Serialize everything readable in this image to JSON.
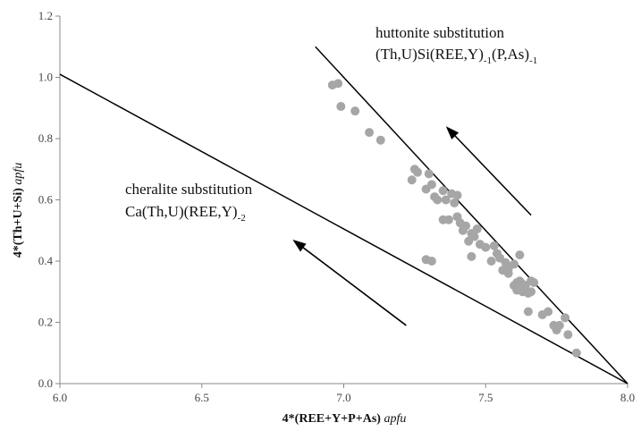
{
  "chart_data": {
    "type": "scatter",
    "title": "",
    "xlabel": {
      "main": "4*(REE+Y+P+As)",
      "unit": "apfu"
    },
    "ylabel": {
      "main": "4*(Th+U+Si)",
      "unit": "apfu"
    },
    "xlim": [
      6.0,
      8.0
    ],
    "ylim": [
      0.0,
      1.2
    ],
    "xticks": [
      "6.0",
      "6.5",
      "7.0",
      "7.5",
      "8.0"
    ],
    "yticks": [
      "0.0",
      "0.2",
      "0.4",
      "0.6",
      "0.8",
      "1.0",
      "1.2"
    ],
    "grid": false,
    "point_color": "#a6a6a6",
    "line_color": "#000000",
    "lines": [
      {
        "x": [
          6.0,
          8.0
        ],
        "y": [
          1.01,
          0.0
        ]
      },
      {
        "x": [
          6.9,
          8.0
        ],
        "y": [
          1.1,
          0.0
        ]
      }
    ],
    "arrows": [
      {
        "from": [
          7.22,
          0.19
        ],
        "to": [
          6.82,
          0.47
        ]
      },
      {
        "from": [
          7.66,
          0.55
        ],
        "to": [
          7.36,
          0.84
        ]
      }
    ],
    "annotations": [
      {
        "line1": "cheralite substitution",
        "line2_parts": [
          "Ca(Th,U)(REE,Y)",
          "-2"
        ]
      },
      {
        "line1": "huttonite substitution",
        "line2_parts": [
          "(Th,U)Si(REE,Y)",
          "-1",
          "(P,As)",
          "-1"
        ]
      }
    ],
    "points": [
      [
        6.96,
        0.975
      ],
      [
        6.98,
        0.98
      ],
      [
        6.99,
        0.905
      ],
      [
        7.04,
        0.89
      ],
      [
        7.09,
        0.82
      ],
      [
        7.13,
        0.795
      ],
      [
        7.24,
        0.665
      ],
      [
        7.25,
        0.7
      ],
      [
        7.26,
        0.69
      ],
      [
        7.29,
        0.635
      ],
      [
        7.3,
        0.685
      ],
      [
        7.31,
        0.65
      ],
      [
        7.32,
        0.61
      ],
      [
        7.33,
        0.6
      ],
      [
        7.35,
        0.63
      ],
      [
        7.36,
        0.6
      ],
      [
        7.35,
        0.535
      ],
      [
        7.37,
        0.535
      ],
      [
        7.38,
        0.62
      ],
      [
        7.39,
        0.59
      ],
      [
        7.4,
        0.615
      ],
      [
        7.4,
        0.545
      ],
      [
        7.41,
        0.525
      ],
      [
        7.42,
        0.5
      ],
      [
        7.43,
        0.515
      ],
      [
        7.44,
        0.465
      ],
      [
        7.45,
        0.49
      ],
      [
        7.46,
        0.48
      ],
      [
        7.47,
        0.505
      ],
      [
        7.48,
        0.455
      ],
      [
        7.45,
        0.415
      ],
      [
        7.5,
        0.445
      ],
      [
        7.52,
        0.4
      ],
      [
        7.53,
        0.45
      ],
      [
        7.54,
        0.425
      ],
      [
        7.55,
        0.41
      ],
      [
        7.56,
        0.37
      ],
      [
        7.57,
        0.395
      ],
      [
        7.58,
        0.375
      ],
      [
        7.58,
        0.36
      ],
      [
        7.6,
        0.39
      ],
      [
        7.6,
        0.32
      ],
      [
        7.61,
        0.33
      ],
      [
        7.61,
        0.305
      ],
      [
        7.62,
        0.335
      ],
      [
        7.62,
        0.42
      ],
      [
        7.63,
        0.3
      ],
      [
        7.63,
        0.325
      ],
      [
        7.64,
        0.32
      ],
      [
        7.65,
        0.295
      ],
      [
        7.66,
        0.335
      ],
      [
        7.67,
        0.33
      ],
      [
        7.66,
        0.3
      ],
      [
        7.65,
        0.235
      ],
      [
        7.7,
        0.225
      ],
      [
        7.72,
        0.235
      ],
      [
        7.74,
        0.19
      ],
      [
        7.75,
        0.175
      ],
      [
        7.76,
        0.19
      ],
      [
        7.78,
        0.215
      ],
      [
        7.79,
        0.16
      ],
      [
        7.82,
        0.1
      ],
      [
        7.29,
        0.405
      ],
      [
        7.31,
        0.4
      ]
    ]
  }
}
